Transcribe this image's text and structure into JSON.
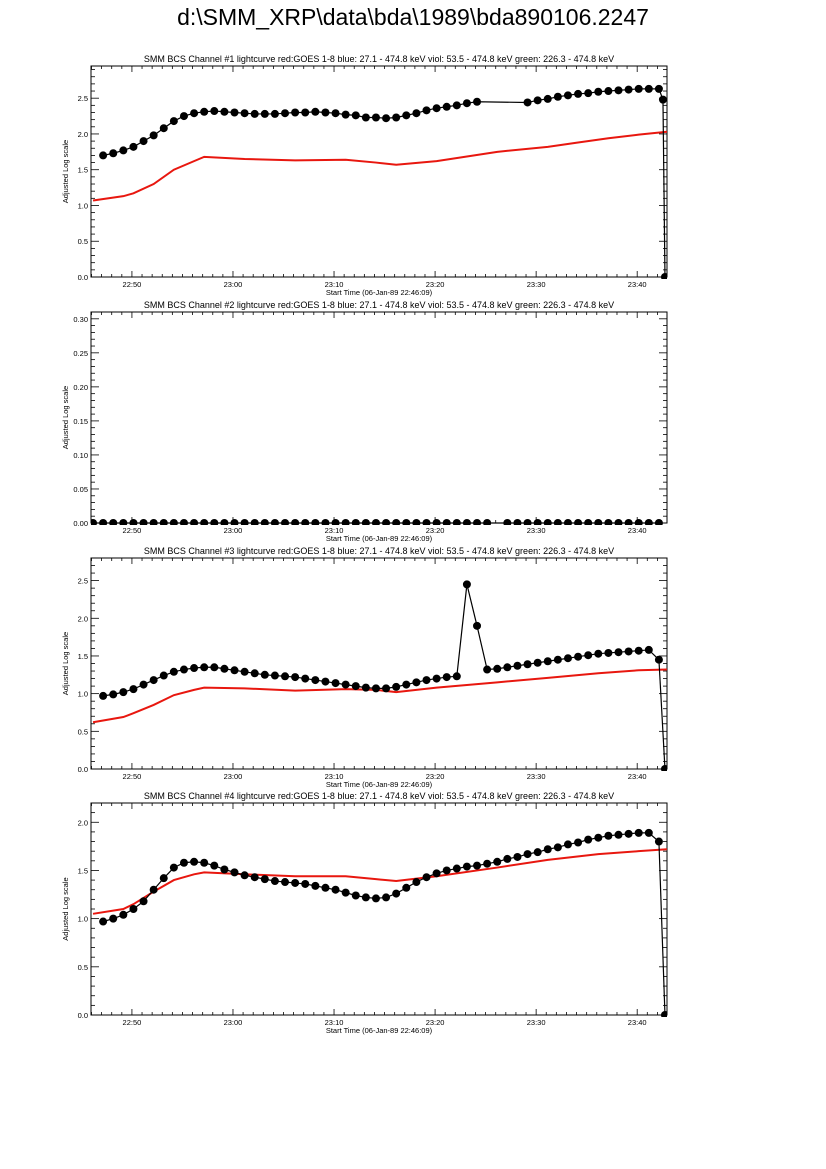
{
  "page": {
    "title": "d:\\SMM_XRP\\data\\bda\\1989\\bda890106.2247"
  },
  "colors": {
    "goes": "#e8170f",
    "bcs": "#000000",
    "axis": "#000000"
  },
  "chart_data": [
    {
      "type": "line",
      "title": "SMM BCS Channel #1 lightcurve  red:GOES 1-8  blue: 27.1 - 474.8 keV  viol: 53.5 - 474.8 keV  green: 226.3 - 474.8 keV",
      "xlabel": "Start Time (06-Jan-89 22:46:09)",
      "ylabel": "Adjusted Log scale",
      "xlim": [
        -0.2,
        56.8
      ],
      "ylim": [
        0.0,
        2.95
      ],
      "xtick_labels": [
        "22:50",
        "23:00",
        "23:10",
        "23:20",
        "23:30",
        "23:40"
      ],
      "ytick_labels": [
        "0.0",
        "0.5",
        "1.0",
        "1.5",
        "2.0",
        "2.5"
      ],
      "series": [
        {
          "color": "red",
          "style": "line",
          "x": [
            0,
            3,
            4,
            6,
            8,
            10,
            11,
            15,
            20,
            25,
            28,
            30,
            34,
            40,
            45,
            48,
            51,
            54,
            56.8
          ],
          "y": [
            1.07,
            1.13,
            1.17,
            1.3,
            1.5,
            1.62,
            1.68,
            1.65,
            1.63,
            1.64,
            1.6,
            1.57,
            1.62,
            1.75,
            1.82,
            1.88,
            1.94,
            1.99,
            2.03
          ]
        },
        {
          "color": "black",
          "style": "dots",
          "x": [
            1,
            2,
            3,
            4,
            5,
            6,
            7,
            8,
            9,
            10,
            11,
            12,
            13,
            14,
            15,
            16,
            17,
            18,
            19,
            20,
            21,
            22,
            23,
            24,
            25,
            26,
            27,
            28,
            29,
            30,
            31,
            32,
            33,
            34,
            35,
            36,
            37,
            38,
            43,
            44,
            45,
            46,
            47,
            48,
            49,
            50,
            51,
            52,
            53,
            54,
            55,
            56
          ],
          "y": [
            1.7,
            1.73,
            1.77,
            1.82,
            1.9,
            1.98,
            2.08,
            2.18,
            2.25,
            2.29,
            2.31,
            2.32,
            2.31,
            2.3,
            2.29,
            2.28,
            2.28,
            2.28,
            2.29,
            2.3,
            2.3,
            2.31,
            2.3,
            2.29,
            2.27,
            2.26,
            2.23,
            2.23,
            2.22,
            2.23,
            2.26,
            2.29,
            2.33,
            2.36,
            2.38,
            2.4,
            2.43,
            2.45,
            2.44,
            2.47,
            2.49,
            2.52,
            2.54,
            2.56,
            2.57,
            2.59,
            2.6,
            2.61,
            2.62,
            2.63,
            2.63,
            2.63
          ]
        },
        {
          "color": "black",
          "style": "dots",
          "x": [
            56.4,
            56.6
          ],
          "y": [
            2.48,
            0.0
          ]
        }
      ]
    },
    {
      "type": "line",
      "title": "SMM BCS Channel #2 lightcurve  red:GOES 1-8  blue: 27.1 - 474.8 keV  viol: 53.5 - 474.8 keV  green: 226.3 - 474.8 keV",
      "xlabel": "Start Time (06-Jan-89 22:46:09)",
      "ylabel": "Adjusted Log scale",
      "xlim": [
        -0.2,
        56.8
      ],
      "ylim": [
        0.0,
        0.31
      ],
      "xtick_labels": [
        "22:50",
        "23:00",
        "23:10",
        "23:20",
        "23:30",
        "23:40"
      ],
      "ytick_labels": [
        "0.00",
        "0.05",
        "0.10",
        "0.15",
        "0.20",
        "0.25",
        "0.30"
      ],
      "series": [
        {
          "color": "black",
          "style": "dots",
          "x": [
            0,
            1,
            2,
            3,
            4,
            5,
            6,
            7,
            8,
            9,
            10,
            11,
            12,
            13,
            14,
            15,
            16,
            17,
            18,
            19,
            20,
            21,
            22,
            23,
            24,
            25,
            26,
            27,
            28,
            29,
            30,
            31,
            32,
            33,
            34,
            35,
            36,
            37,
            38,
            39,
            41,
            42,
            43,
            44,
            45,
            46,
            47,
            48,
            49,
            50,
            51,
            52,
            53,
            54,
            55,
            56
          ],
          "y": [
            0,
            0,
            0,
            0,
            0,
            0,
            0,
            0,
            0,
            0,
            0,
            0,
            0,
            0,
            0,
            0,
            0,
            0,
            0,
            0,
            0,
            0,
            0,
            0,
            0,
            0,
            0,
            0,
            0,
            0,
            0,
            0,
            0,
            0,
            0,
            0,
            0,
            0,
            0,
            0,
            0,
            0,
            0,
            0,
            0,
            0,
            0,
            0,
            0,
            0,
            0,
            0,
            0,
            0,
            0,
            0
          ]
        }
      ]
    },
    {
      "type": "line",
      "title": "SMM BCS Channel #3 lightcurve  red:GOES 1-8  blue: 27.1 - 474.8 keV  viol: 53.5 - 474.8 keV  green: 226.3 - 474.8 keV",
      "xlabel": "Start Time (06-Jan-89 22:46:09)",
      "ylabel": "Adjusted Log scale",
      "xlim": [
        -0.2,
        56.8
      ],
      "ylim": [
        0.0,
        2.8
      ],
      "xtick_labels": [
        "22:50",
        "23:00",
        "23:10",
        "23:20",
        "23:30",
        "23:40"
      ],
      "ytick_labels": [
        "0.0",
        "0.5",
        "1.0",
        "1.5",
        "2.0",
        "2.5"
      ],
      "series": [
        {
          "color": "red",
          "style": "line",
          "x": [
            0,
            3,
            4,
            6,
            8,
            10,
            11,
            15,
            20,
            25,
            28,
            30,
            34,
            40,
            45,
            50,
            54,
            56.8
          ],
          "y": [
            0.62,
            0.69,
            0.74,
            0.85,
            0.98,
            1.05,
            1.08,
            1.07,
            1.04,
            1.06,
            1.05,
            1.02,
            1.08,
            1.15,
            1.21,
            1.27,
            1.31,
            1.32
          ]
        },
        {
          "color": "black",
          "style": "dots",
          "x": [
            1,
            2,
            3,
            4,
            5,
            6,
            7,
            8,
            9,
            10,
            11,
            12,
            13,
            14,
            15,
            16,
            17,
            18,
            19,
            20,
            21,
            22,
            23,
            24,
            25,
            26,
            27,
            28,
            29,
            30,
            31,
            32,
            33,
            34,
            35,
            36,
            37,
            38,
            39,
            40,
            41,
            42,
            43,
            44,
            45,
            46,
            47,
            48,
            49,
            50,
            51,
            52,
            53,
            54,
            55,
            56
          ],
          "y": [
            0.97,
            0.99,
            1.02,
            1.06,
            1.12,
            1.18,
            1.24,
            1.29,
            1.32,
            1.34,
            1.35,
            1.35,
            1.33,
            1.31,
            1.29,
            1.27,
            1.25,
            1.24,
            1.23,
            1.22,
            1.2,
            1.18,
            1.16,
            1.14,
            1.12,
            1.1,
            1.08,
            1.07,
            1.07,
            1.09,
            1.12,
            1.15,
            1.18,
            1.2,
            1.22,
            1.23,
            2.45,
            1.9,
            1.32,
            1.33,
            1.35,
            1.37,
            1.39,
            1.41,
            1.43,
            1.45,
            1.47,
            1.49,
            1.51,
            1.53,
            1.54,
            1.55,
            1.56,
            1.57,
            1.58,
            1.45
          ]
        },
        {
          "color": "black",
          "style": "dots",
          "x": [
            56.6
          ],
          "y": [
            0.0
          ]
        }
      ]
    },
    {
      "type": "line",
      "title": "SMM BCS Channel #4 lightcurve  red:GOES 1-8  blue: 27.1 - 474.8 keV  viol: 53.5 - 474.8 keV  green: 226.3 - 474.8 keV",
      "xlabel": "Start Time (06-Jan-89 22:46:09)",
      "ylabel": "Adjusted Log scale",
      "xlim": [
        -0.2,
        56.8
      ],
      "ylim": [
        0.0,
        2.2
      ],
      "xtick_labels": [
        "22:50",
        "23:00",
        "23:10",
        "23:20",
        "23:30",
        "23:40"
      ],
      "ytick_labels": [
        "0.0",
        "0.5",
        "1.0",
        "1.5",
        "2.0"
      ],
      "series": [
        {
          "color": "red",
          "style": "line",
          "x": [
            0,
            3,
            4,
            6,
            8,
            10,
            11,
            15,
            20,
            25,
            28,
            30,
            34,
            40,
            45,
            50,
            54,
            56.8
          ],
          "y": [
            1.05,
            1.1,
            1.15,
            1.28,
            1.4,
            1.46,
            1.48,
            1.46,
            1.44,
            1.44,
            1.41,
            1.39,
            1.44,
            1.53,
            1.61,
            1.67,
            1.7,
            1.72
          ]
        },
        {
          "color": "black",
          "style": "dots",
          "x": [
            1,
            2,
            3,
            4,
            5,
            6,
            7,
            8,
            9,
            10,
            11,
            12,
            13,
            14,
            15,
            16,
            17,
            18,
            19,
            20,
            21,
            22,
            23,
            24,
            25,
            26,
            27,
            28,
            29,
            30,
            31,
            32,
            33,
            34,
            35,
            36,
            37,
            38,
            39,
            40,
            41,
            42,
            43,
            44,
            45,
            46,
            47,
            48,
            49,
            50,
            51,
            52,
            53,
            54,
            55,
            56
          ],
          "y": [
            0.97,
            1.0,
            1.04,
            1.1,
            1.18,
            1.3,
            1.42,
            1.53,
            1.58,
            1.59,
            1.58,
            1.55,
            1.51,
            1.48,
            1.45,
            1.43,
            1.41,
            1.39,
            1.38,
            1.37,
            1.36,
            1.34,
            1.32,
            1.3,
            1.27,
            1.24,
            1.22,
            1.21,
            1.22,
            1.26,
            1.32,
            1.38,
            1.43,
            1.47,
            1.5,
            1.52,
            1.54,
            1.55,
            1.57,
            1.59,
            1.62,
            1.64,
            1.67,
            1.69,
            1.72,
            1.74,
            1.77,
            1.79,
            1.82,
            1.84,
            1.86,
            1.87,
            1.88,
            1.89,
            1.89,
            1.8
          ]
        },
        {
          "color": "black",
          "style": "dots",
          "x": [
            56.6
          ],
          "y": [
            0.0
          ]
        }
      ]
    }
  ]
}
